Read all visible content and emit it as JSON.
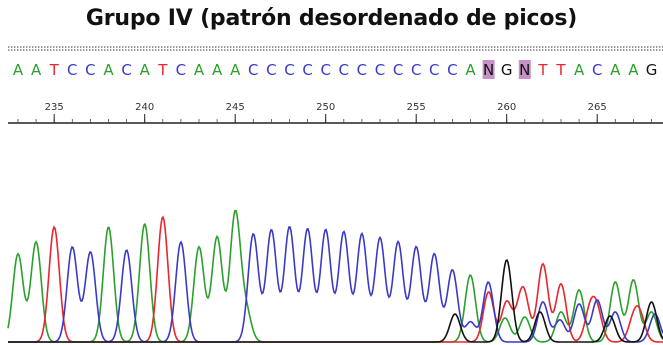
{
  "title": "Grupo IV (patrón desordenado de picos)",
  "sequence": "AATCCACATCAAACCCCCCCCCCCCANGNTTACAAG",
  "ambiguous_color": "#c890c8",
  "base_colors": {
    "A": "#2ca02c",
    "T": "#e8262e",
    "C": "#3a3ac8",
    "G": "#111111",
    "N": "#111111"
  },
  "ruler_labels": [
    "235",
    "240",
    "245",
    "250",
    "255",
    "260",
    "265"
  ]
}
